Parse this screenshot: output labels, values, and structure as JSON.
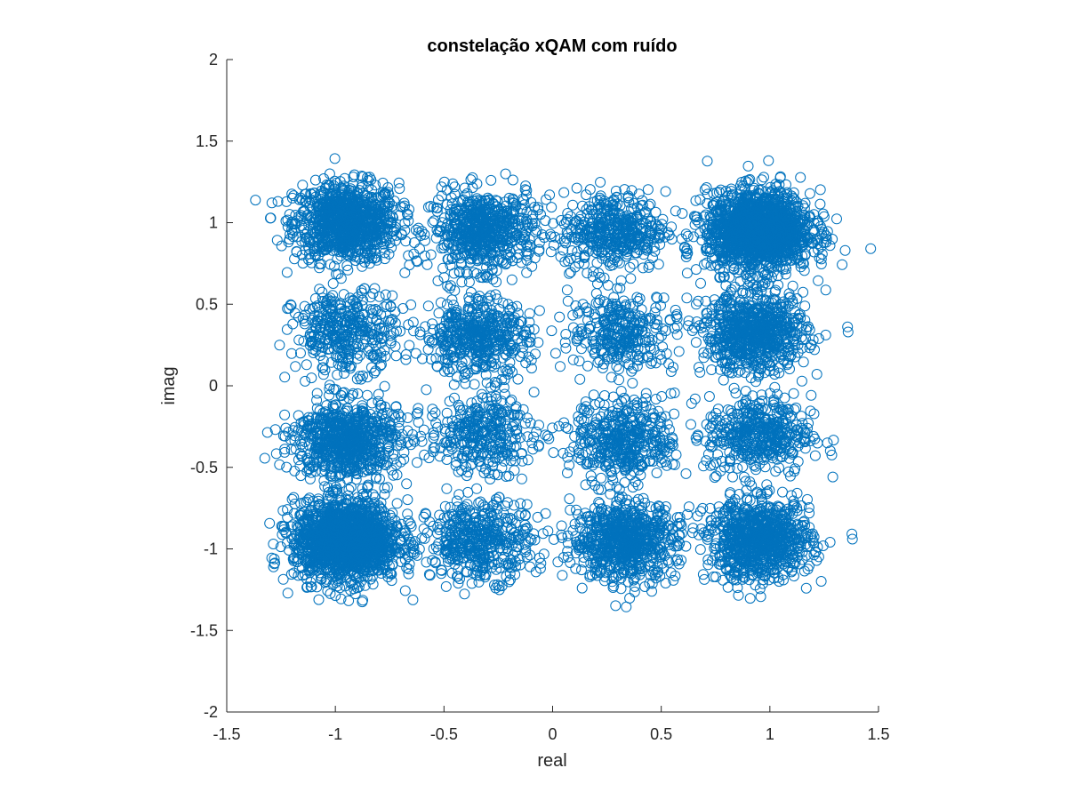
{
  "chart_data": {
    "type": "scatter",
    "title": "constelação xQAM com ruído",
    "xlabel": "real",
    "ylabel": "imag",
    "xlim": [
      -1.5,
      1.5
    ],
    "ylim": [
      -2,
      2
    ],
    "xticks": [
      -1.5,
      -1,
      -0.5,
      0,
      0.5,
      1,
      1.5
    ],
    "xtick_labels": [
      "-1.5",
      "-1",
      "-0.5",
      "0",
      "0.5",
      "1",
      "1.5"
    ],
    "yticks": [
      -2,
      -1.5,
      -1,
      -0.5,
      0,
      0.5,
      1,
      1.5,
      2
    ],
    "ytick_labels": [
      "-2",
      "-1.5",
      "-1",
      "-0.5",
      "0",
      "0.5",
      "1",
      "1.5",
      "2"
    ],
    "grid": false,
    "marker": "circle-open",
    "color": "#0072BD",
    "clusters": [
      {
        "x": -0.95,
        "y": 1,
        "count": 900
      },
      {
        "x": -0.32,
        "y": 0.95,
        "count": 600
      },
      {
        "x": 0.28,
        "y": 0.95,
        "count": 420
      },
      {
        "x": 0.95,
        "y": 0.95,
        "count": 1500
      },
      {
        "x": -0.95,
        "y": 0.33,
        "count": 360
      },
      {
        "x": -0.35,
        "y": 0.3,
        "count": 450
      },
      {
        "x": 0.32,
        "y": 0.33,
        "count": 300
      },
      {
        "x": 0.93,
        "y": 0.32,
        "count": 700
      },
      {
        "x": -0.95,
        "y": -0.33,
        "count": 720
      },
      {
        "x": -0.33,
        "y": -0.3,
        "count": 320
      },
      {
        "x": 0.33,
        "y": -0.33,
        "count": 400
      },
      {
        "x": 0.95,
        "y": -0.3,
        "count": 420
      },
      {
        "x": -0.95,
        "y": -0.95,
        "count": 1600
      },
      {
        "x": -0.33,
        "y": -0.95,
        "count": 420
      },
      {
        "x": 0.33,
        "y": -0.95,
        "count": 700
      },
      {
        "x": 0.95,
        "y": -0.95,
        "count": 800
      }
    ],
    "noise_std": 0.12
  }
}
